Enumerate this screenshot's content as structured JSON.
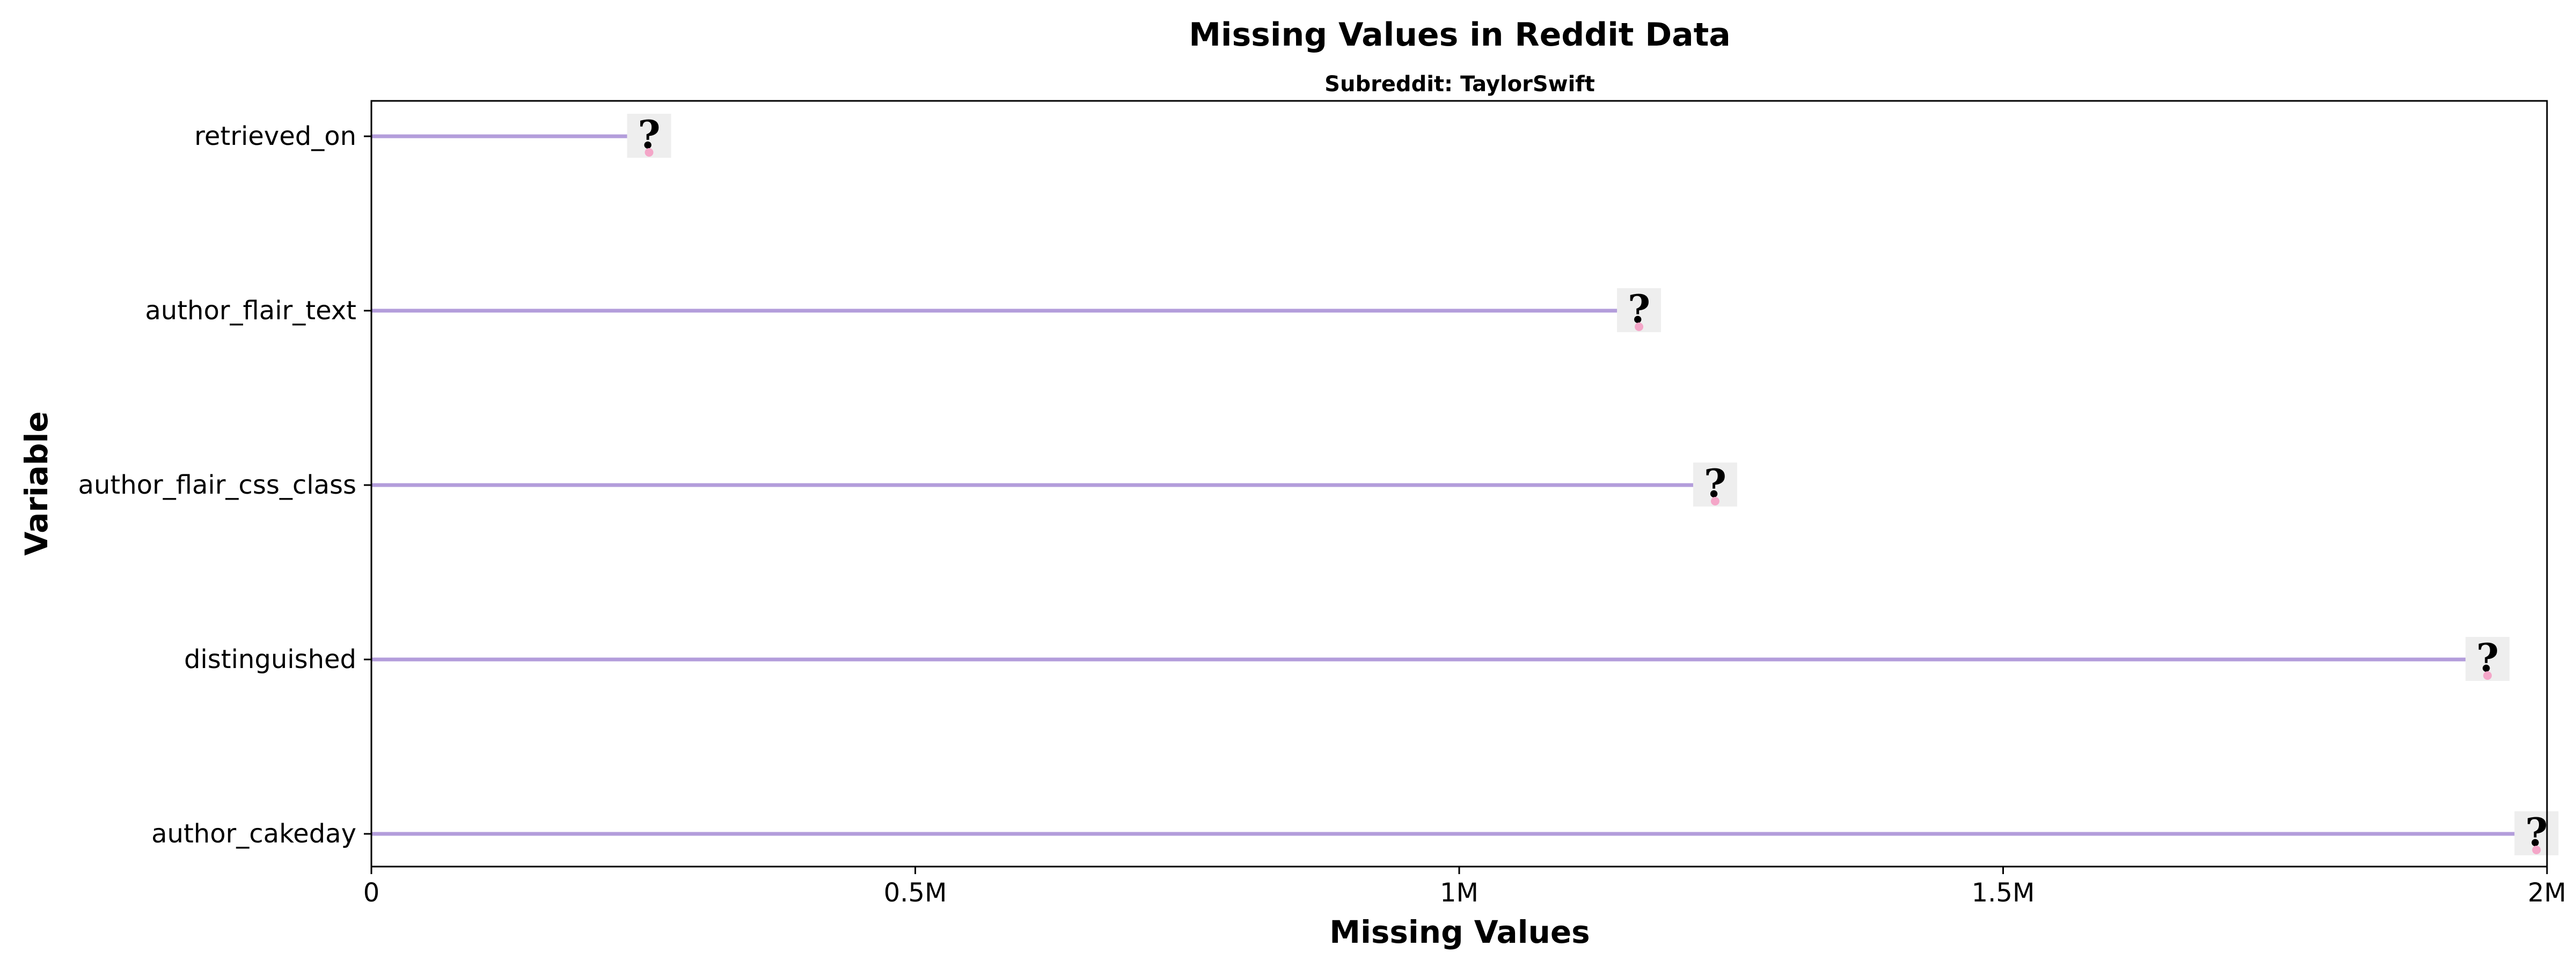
{
  "chart_data": {
    "type": "lollipop",
    "orientation": "horizontal",
    "title": "Missing Values in Reddit Data",
    "subtitle": "Subreddit: TaylorSwift",
    "xlabel": "Missing Values",
    "ylabel": "Variable",
    "xlim": [
      0,
      2000000
    ],
    "x_ticks": [
      {
        "value": 0,
        "label": "0"
      },
      {
        "value": 500000,
        "label": "0.5M"
      },
      {
        "value": 1000000,
        "label": "1M"
      },
      {
        "value": 1500000,
        "label": "1.5M"
      },
      {
        "value": 2000000,
        "label": "2M"
      }
    ],
    "categories": [
      "retrieved_on",
      "author_flair_text",
      "author_flair_css_class",
      "distinguished",
      "author_cakeday"
    ],
    "values": [
      240000,
      1150000,
      1220000,
      1930000,
      1975000
    ],
    "marker_icon": "question-mark-icon",
    "colors": {
      "stem": "#b39ddb",
      "marker_bg": "#eeeeee",
      "marker_glyph": "#c39bd3",
      "marker_dot": "#f4a6c8"
    },
    "grid": false,
    "legend": "none"
  }
}
